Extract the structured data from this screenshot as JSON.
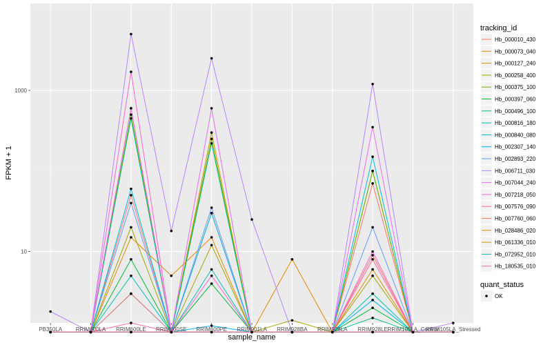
{
  "chart_data": {
    "type": "line",
    "title": "",
    "xlabel": "sample_name",
    "ylabel": "FPKM + 1",
    "scale_y": "log10",
    "ylim": [
      1.3,
      12000
    ],
    "y_ticks": [
      10,
      1000
    ],
    "y_tick_labels": [
      "10",
      "1000"
    ],
    "categories": [
      "PB350LA",
      "RRIM600LA",
      "RRIM600LE",
      "RRIM600SE",
      "RRIM600PE",
      "RRIM901LA",
      "RRIM928BA",
      "RRIM928LA",
      "RRIM928LE",
      "RRIM105LA_Control",
      "RRIM105LA_Stressed"
    ],
    "x_tick_labels": [
      "PB350LA",
      "RRIM600LA",
      "RRIM600LE",
      "RRIM600SE",
      "RRIM600PE",
      "RRIM901LA",
      "RRIM928BA",
      "RRIM928LA",
      "RRIM928LE",
      "RRIM105LA_Control",
      "RRIM105LA_Stressed"
    ],
    "grid": true,
    "legend": {
      "title": "tracking_id",
      "position": "right",
      "shape_title": "quant_status",
      "shape_label": "OK"
    },
    "series": [
      {
        "name": "Hb_000010_430",
        "color": "#F8766D",
        "values": [
          1,
          1,
          50,
          1,
          30,
          1,
          1,
          1,
          70,
          1,
          1
        ]
      },
      {
        "name": "Hb_000073_040",
        "color": "#E58700",
        "values": [
          1,
          1,
          15,
          5,
          15,
          1,
          8,
          1,
          6,
          1,
          1
        ]
      },
      {
        "name": "Hb_000127_240",
        "color": "#C99800",
        "values": [
          1,
          1,
          600,
          1,
          300,
          1,
          1,
          1,
          100,
          1,
          1
        ]
      },
      {
        "name": "Hb_000258_400",
        "color": "#A3A500",
        "values": [
          1,
          1,
          20,
          1,
          12,
          1,
          1.4,
          1,
          5,
          1,
          1
        ]
      },
      {
        "name": "Hb_000375_100",
        "color": "#6BB100",
        "values": [
          1,
          1,
          500,
          1,
          250,
          1,
          1,
          1,
          100,
          1,
          1
        ]
      },
      {
        "name": "Hb_000397_060",
        "color": "#00BA38",
        "values": [
          1,
          1,
          8,
          1,
          4,
          1,
          1,
          1,
          2,
          1,
          1
        ]
      },
      {
        "name": "Hb_000496_100",
        "color": "#00BF7D",
        "values": [
          1,
          1,
          450,
          1,
          220,
          1,
          1,
          1,
          1.5,
          1,
          1
        ]
      },
      {
        "name": "Hb_000816_180",
        "color": "#00C0AF",
        "values": [
          1,
          1,
          5,
          1,
          6,
          1,
          1,
          1,
          3,
          1,
          1
        ]
      },
      {
        "name": "Hb_000840_080",
        "color": "#00BCD8",
        "values": [
          1,
          1,
          60,
          1,
          30,
          1,
          1,
          1,
          150,
          1,
          1
        ]
      },
      {
        "name": "Hb_002307_140",
        "color": "#00B0F6",
        "values": [
          1,
          1,
          3,
          1,
          1.2,
          1,
          1,
          1,
          2.5,
          1,
          1
        ]
      },
      {
        "name": "Hb_002893_220",
        "color": "#619CFF",
        "values": [
          1,
          1,
          40,
          1,
          35,
          1,
          1,
          1,
          20,
          1,
          1
        ]
      },
      {
        "name": "Hb_006711_030",
        "color": "#B983FF",
        "values": [
          1.8,
          1,
          5000,
          18,
          2500,
          25,
          1,
          1,
          1200,
          1,
          1.3
        ]
      },
      {
        "name": "Hb_007044_240",
        "color": "#E76BF3",
        "values": [
          1,
          1,
          600,
          1,
          600,
          1,
          1,
          1,
          350,
          1,
          1
        ]
      },
      {
        "name": "Hb_007218_050",
        "color": "#FD61D1",
        "values": [
          1,
          1,
          1700,
          1,
          5,
          1,
          1,
          1,
          10,
          1,
          1
        ]
      },
      {
        "name": "Hb_007576_090",
        "color": "#FF67A4",
        "values": [
          1,
          1,
          1.3,
          1,
          1,
          1,
          1,
          1,
          8,
          1,
          1
        ]
      },
      {
        "name": "Hb_007760_060",
        "color": "#F8766D",
        "values": [
          1,
          1,
          3,
          1,
          1,
          1,
          1,
          1,
          9,
          1,
          1
        ]
      },
      {
        "name": "Hb_028486_020",
        "color": "#E58700",
        "values": [
          1,
          1,
          1,
          1,
          1,
          1,
          1,
          1,
          1,
          1,
          1
        ]
      },
      {
        "name": "Hb_061336_010",
        "color": "#C99800",
        "values": [
          1,
          1,
          1,
          1,
          1,
          1,
          1,
          1,
          1,
          1,
          1
        ]
      },
      {
        "name": "Hb_072952_010",
        "color": "#00C0AF",
        "values": [
          1,
          1,
          1,
          1,
          1,
          1,
          1,
          1,
          1,
          1,
          1
        ]
      },
      {
        "name": "Hb_180535_010",
        "color": "#FF67A4",
        "values": [
          1,
          1,
          1,
          1,
          1,
          1,
          1,
          1,
          1,
          1,
          1
        ]
      }
    ]
  }
}
